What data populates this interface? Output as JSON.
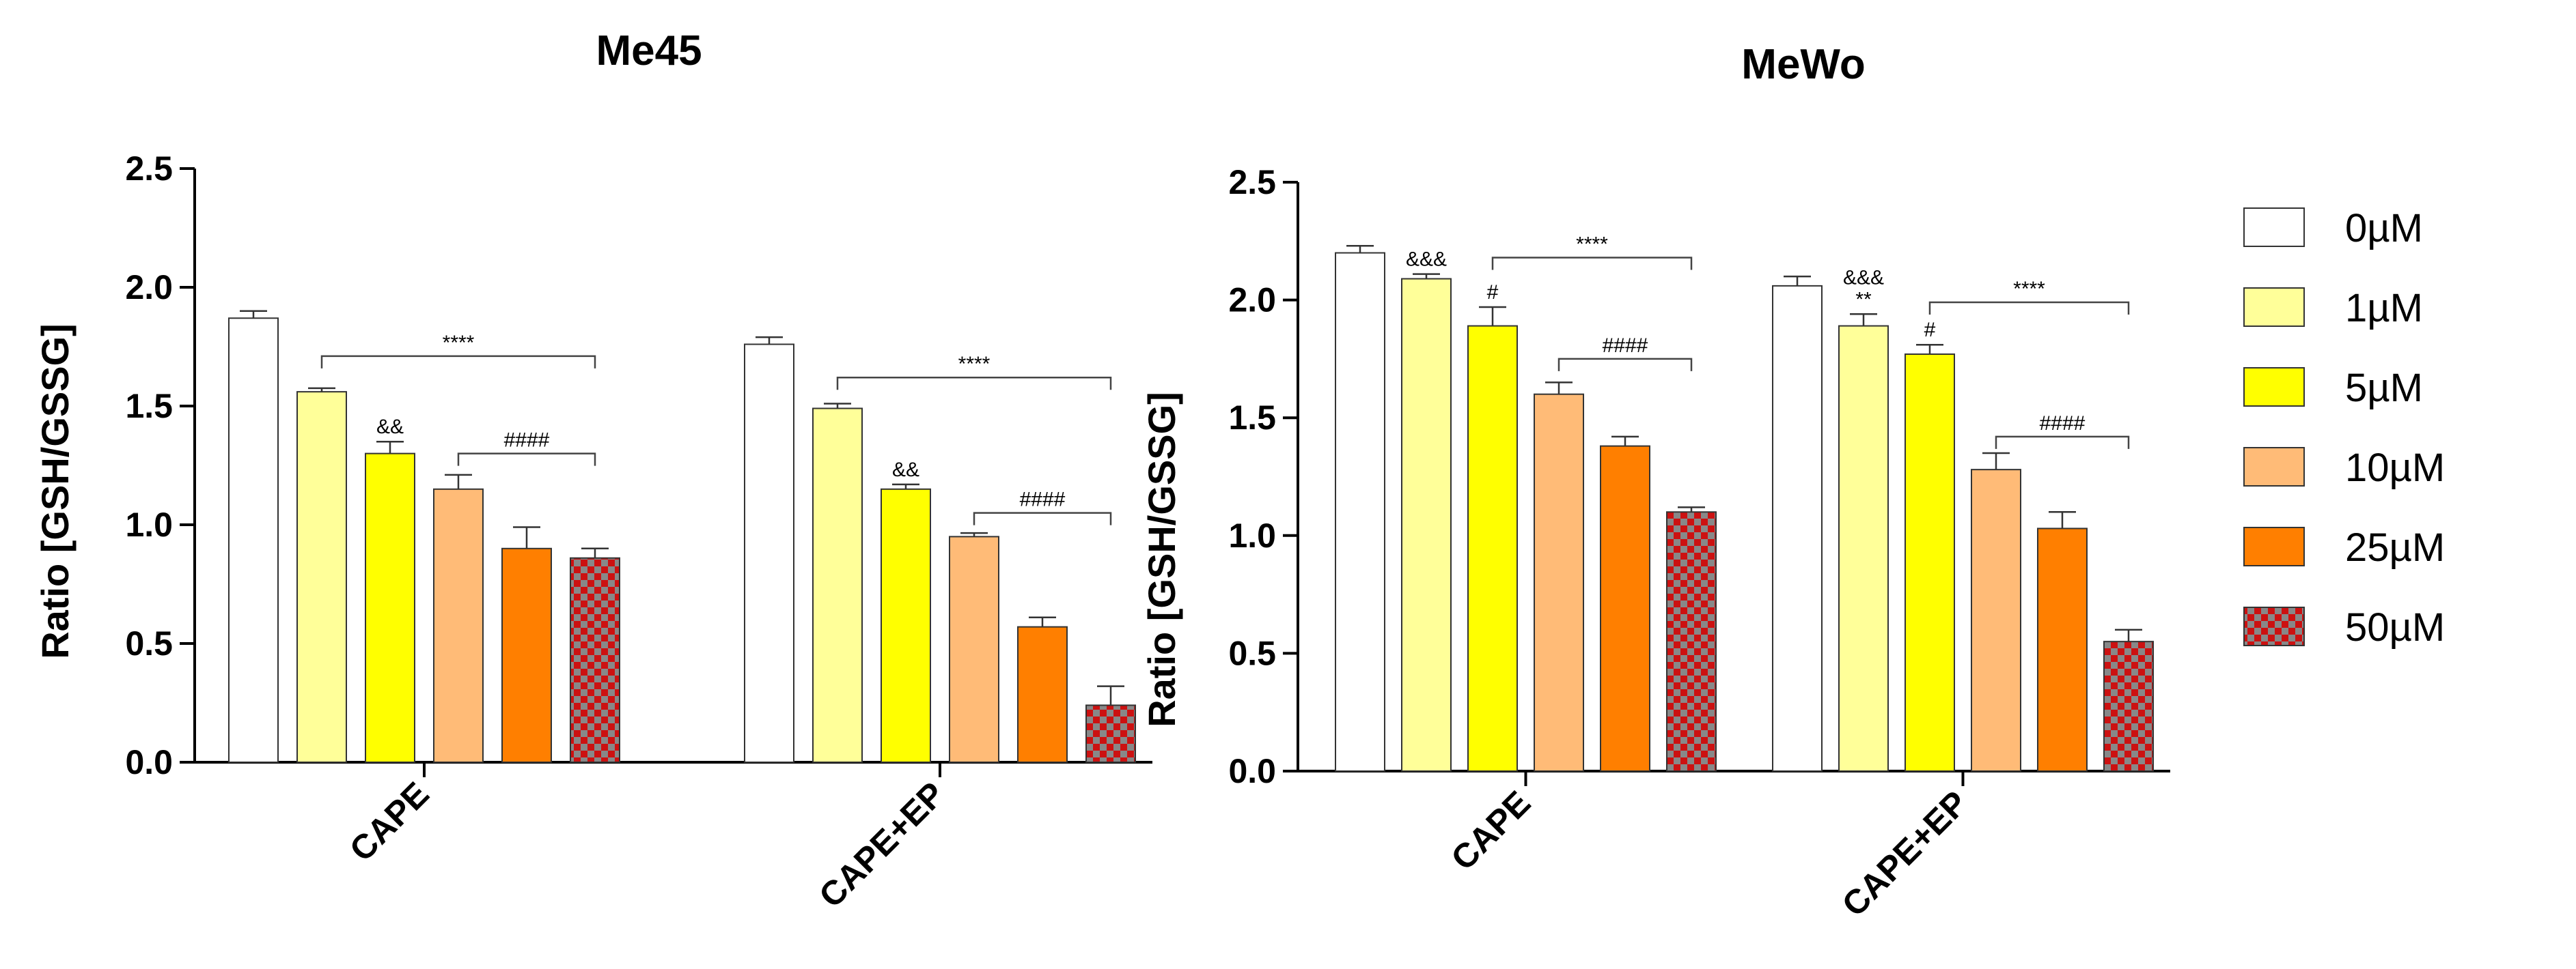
{
  "chart_data": [
    {
      "type": "bar",
      "title": "Me45",
      "ylabel": "Ratio [GSH/GSSG]",
      "xlabel": "",
      "ylim": [
        0,
        2.5
      ],
      "yticks": [
        "0.0",
        "0.5",
        "1.0",
        "1.5",
        "2.0",
        "2.5"
      ],
      "categories": [
        "CAPE",
        "CAPE+EP"
      ],
      "series": [
        {
          "name": "0µM",
          "values": [
            1.87,
            1.76
          ],
          "errors": [
            0.03,
            0.03
          ]
        },
        {
          "name": "1µM",
          "values": [
            1.56,
            1.49
          ],
          "errors": [
            0.015,
            0.02
          ]
        },
        {
          "name": "5µM",
          "values": [
            1.3,
            1.15
          ],
          "errors": [
            0.05,
            0.02
          ]
        },
        {
          "name": "10µM",
          "values": [
            1.15,
            0.95
          ],
          "errors": [
            0.06,
            0.015
          ]
        },
        {
          "name": "25µM",
          "values": [
            0.9,
            0.57
          ],
          "errors": [
            0.09,
            0.04
          ]
        },
        {
          "name": "50µM",
          "values": [
            0.86,
            0.24
          ],
          "errors": [
            0.04,
            0.08
          ]
        }
      ],
      "annotations": {
        "bar_labels": [
          {
            "category": 0,
            "series": 2,
            "text": "&&"
          },
          {
            "category": 1,
            "series": 2,
            "text": "&&"
          }
        ],
        "brackets": [
          {
            "category": 0,
            "from": 1,
            "to": 5,
            "y": 1.71,
            "text": "****"
          },
          {
            "category": 0,
            "from": 3,
            "to": 5,
            "y": 1.3,
            "text": "####"
          },
          {
            "category": 1,
            "from": 1,
            "to": 5,
            "y": 1.62,
            "text": "****"
          },
          {
            "category": 1,
            "from": 3,
            "to": 5,
            "y": 1.05,
            "text": "####"
          }
        ]
      }
    },
    {
      "type": "bar",
      "title": "MeWo",
      "ylabel": "Ratio [GSH/GSSG]",
      "xlabel": "",
      "ylim": [
        0,
        2.5
      ],
      "yticks": [
        "0.0",
        "0.5",
        "1.0",
        "1.5",
        "2.0",
        "2.5"
      ],
      "categories": [
        "CAPE",
        "CAPE+EP"
      ],
      "series": [
        {
          "name": "0µM",
          "values": [
            2.2,
            2.06
          ],
          "errors": [
            0.03,
            0.04
          ]
        },
        {
          "name": "1µM",
          "values": [
            2.09,
            1.89
          ],
          "errors": [
            0.02,
            0.05
          ]
        },
        {
          "name": "5µM",
          "values": [
            1.89,
            1.77
          ],
          "errors": [
            0.08,
            0.04
          ]
        },
        {
          "name": "10µM",
          "values": [
            1.6,
            1.28
          ],
          "errors": [
            0.05,
            0.07
          ]
        },
        {
          "name": "25µM",
          "values": [
            1.38,
            1.03
          ],
          "errors": [
            0.04,
            0.07
          ]
        },
        {
          "name": "50µM",
          "values": [
            1.1,
            0.55
          ],
          "errors": [
            0.02,
            0.05
          ]
        }
      ],
      "annotations": {
        "bar_labels": [
          {
            "category": 0,
            "series": 1,
            "text": "&&&"
          },
          {
            "category": 0,
            "series": 2,
            "text": "#"
          },
          {
            "category": 1,
            "series": 1,
            "text": "&&&\n**"
          },
          {
            "category": 1,
            "series": 2,
            "text": "#"
          }
        ],
        "brackets": [
          {
            "category": 0,
            "from": 2,
            "to": 5,
            "y": 2.18,
            "text": "****"
          },
          {
            "category": 0,
            "from": 3,
            "to": 5,
            "y": 1.75,
            "text": "####"
          },
          {
            "category": 1,
            "from": 2,
            "to": 5,
            "y": 1.99,
            "text": "****"
          },
          {
            "category": 1,
            "from": 3,
            "to": 5,
            "y": 1.42,
            "text": "####"
          }
        ]
      }
    }
  ],
  "legend": {
    "position": "right",
    "items": [
      {
        "label": "0µM",
        "fill": "#ffffff",
        "pattern": "none"
      },
      {
        "label": "1µM",
        "fill": "#ffff99",
        "pattern": "none"
      },
      {
        "label": "5µM",
        "fill": "#ffff00",
        "pattern": "none"
      },
      {
        "label": "10µM",
        "fill": "#ffbb77",
        "pattern": "none"
      },
      {
        "label": "25µM",
        "fill": "#ff7f00",
        "pattern": "none"
      },
      {
        "label": "50µM",
        "fill": "#cc1111",
        "pattern": "checker",
        "pattern_color": "#888888"
      }
    ]
  }
}
